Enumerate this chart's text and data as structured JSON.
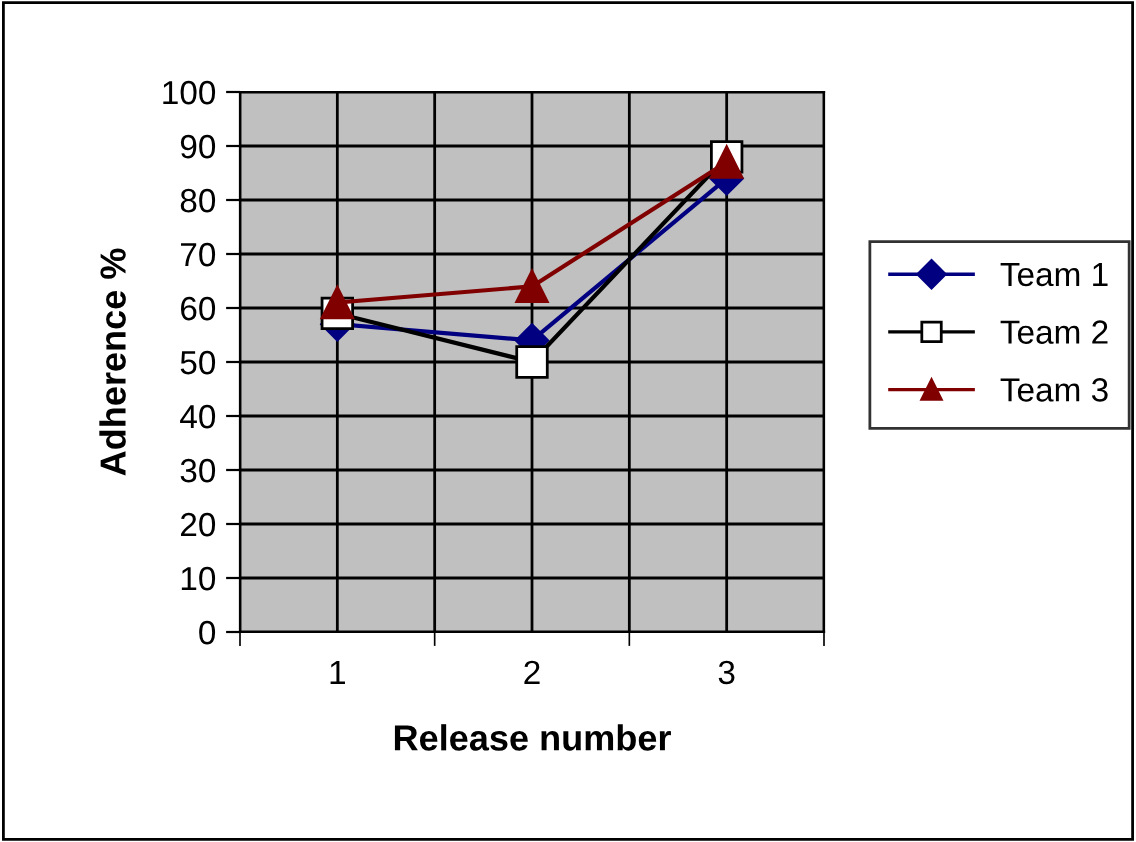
{
  "chart_data": {
    "type": "line",
    "xlabel": "Release number",
    "ylabel": "Adherence %",
    "categories": [
      "1",
      "2",
      "3"
    ],
    "series": [
      {
        "name": "Team 1",
        "color": "#000080",
        "marker": "diamond",
        "values": [
          57,
          54,
          84
        ]
      },
      {
        "name": "Team 2",
        "color": "#000000",
        "marker": "square",
        "values": [
          59,
          50,
          88
        ]
      },
      {
        "name": "Team 3",
        "color": "#800000",
        "marker": "triangle",
        "values": [
          61,
          64,
          87
        ]
      }
    ],
    "ylim": [
      0,
      100
    ],
    "yticks": [
      0,
      10,
      20,
      30,
      40,
      50,
      60,
      70,
      80,
      90,
      100
    ],
    "grid": true,
    "legend": "right",
    "line_style": "solid"
  }
}
